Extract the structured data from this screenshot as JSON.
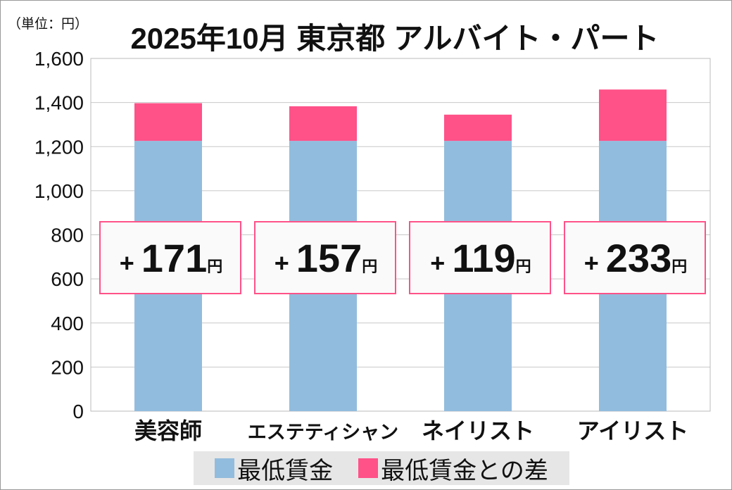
{
  "chart_data": {
    "type": "bar",
    "stacked": true,
    "title": "2025年10月 東京都 アルバイト・パート",
    "unit_label": "（単位：円）",
    "categories": [
      "美容師",
      "エステティシャン",
      "ネイリスト",
      "アイリスト"
    ],
    "series": [
      {
        "name": "最低賃金",
        "values": [
          1226,
          1226,
          1226,
          1226
        ],
        "color": "#92bcdd"
      },
      {
        "name": "最低賃金との差",
        "values": [
          171,
          157,
          119,
          233
        ],
        "color": "#ff5289"
      }
    ],
    "annotations": [
      {
        "sign": "+",
        "value": "171",
        "suffix": "円"
      },
      {
        "sign": "+",
        "value": "157",
        "suffix": "円"
      },
      {
        "sign": "+",
        "value": "119",
        "suffix": "円"
      },
      {
        "sign": "+",
        "value": "233",
        "suffix": "円"
      }
    ],
    "ylim": [
      0,
      1600
    ],
    "yticks": [
      "0",
      "200",
      "400",
      "600",
      "800",
      "1,000",
      "1,200",
      "1,400",
      "1,600"
    ],
    "grid": true,
    "legend": "bottom"
  }
}
